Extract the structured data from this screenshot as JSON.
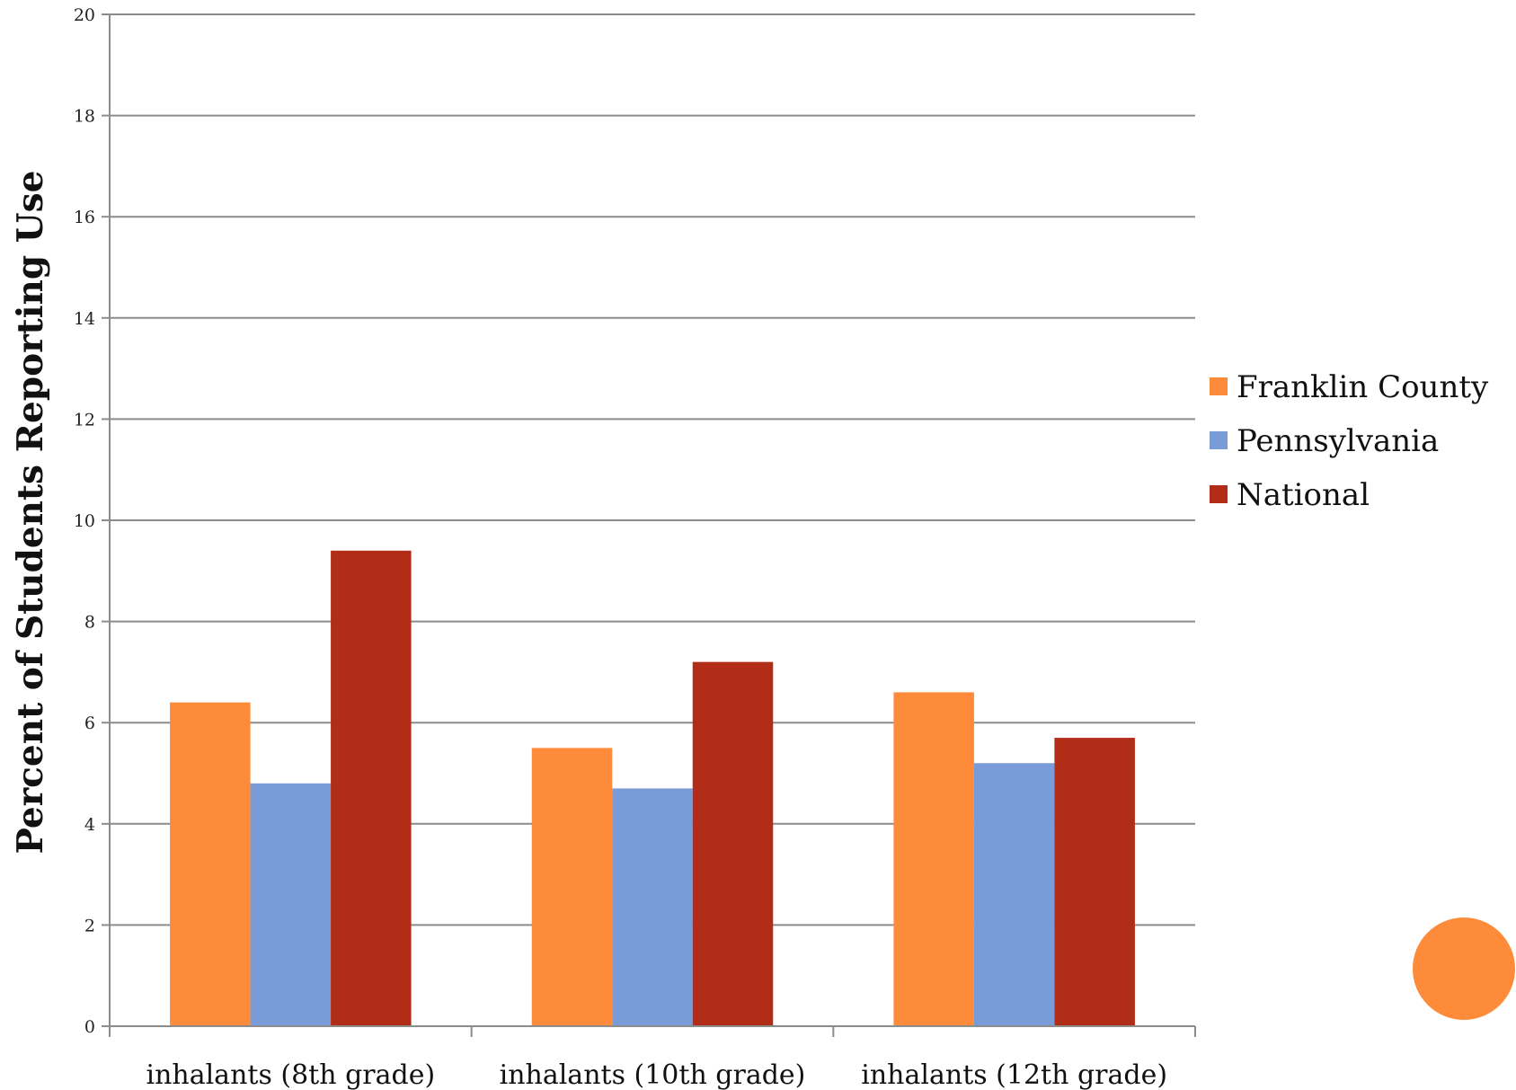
{
  "colors": {
    "series": [
      "#fd8b3a",
      "#799cd8",
      "#b22d17"
    ],
    "gridline": "#8c8c8c",
    "axis": "#8c8c8c",
    "decoration_circle": "#fd8b3a"
  },
  "chart_data": {
    "type": "bar",
    "title": "",
    "xlabel": "",
    "ylabel": "Percent of Students Reporting Use",
    "categories": [
      "inhalants (8th grade)",
      "inhalants (10th grade)",
      "inhalants (12th grade)"
    ],
    "series": [
      {
        "name": "Franklin County",
        "values": [
          6.4,
          5.5,
          6.6
        ]
      },
      {
        "name": "Pennsylvania",
        "values": [
          4.8,
          4.7,
          5.2
        ]
      },
      {
        "name": "National",
        "values": [
          9.4,
          7.2,
          5.7
        ]
      }
    ],
    "ylim": [
      0,
      20
    ],
    "yticks": [
      "0",
      "2",
      "4",
      "6",
      "8",
      "10",
      "12",
      "14",
      "16",
      "18",
      "20"
    ],
    "grid": true,
    "legend_position": "right"
  },
  "decoration": {
    "shape": "orange-circle"
  }
}
